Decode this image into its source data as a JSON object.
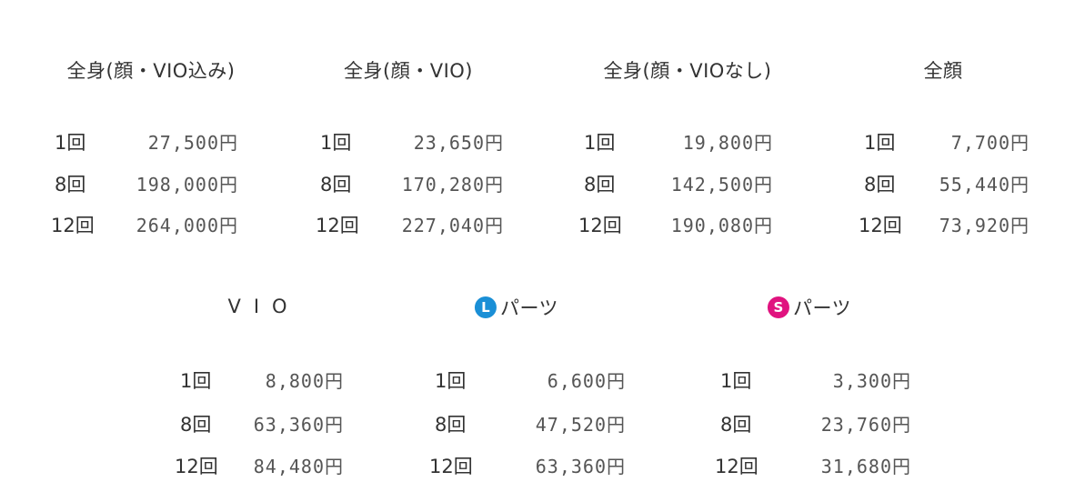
{
  "colors": {
    "text": "#333333",
    "price": "#555555",
    "badge_l": "#1a8fd6",
    "badge_s": "#e0137f"
  },
  "plans": [
    {
      "title": "全身(顔・VIO込み)",
      "rows": [
        {
          "count": "1回",
          "price": "27,500円"
        },
        {
          "count": "8回",
          "price": "198,000円"
        },
        {
          "count": "12回",
          "price": "264,000円"
        }
      ]
    },
    {
      "title": "全身(顔・VIO)",
      "rows": [
        {
          "count": "1回",
          "price": "23,650円"
        },
        {
          "count": "8回",
          "price": "170,280円"
        },
        {
          "count": "12回",
          "price": "227,040円"
        }
      ]
    },
    {
      "title": "全身(顔・VIOなし)",
      "rows": [
        {
          "count": "1回",
          "price": "19,800円"
        },
        {
          "count": "8回",
          "price": "142,500円"
        },
        {
          "count": "12回",
          "price": "190,080円"
        }
      ]
    },
    {
      "title": "全顔",
      "rows": [
        {
          "count": "1回",
          "price": "7,700円"
        },
        {
          "count": "8回",
          "price": "55,440円"
        },
        {
          "count": "12回",
          "price": "73,920円"
        }
      ]
    },
    {
      "title": "VIO",
      "rows": [
        {
          "count": "1回",
          "price": "8,800円"
        },
        {
          "count": "8回",
          "price": "63,360円"
        },
        {
          "count": "12回",
          "price": "84,480円"
        }
      ]
    },
    {
      "title": "パーツ",
      "badge": "L",
      "rows": [
        {
          "count": "1回",
          "price": "6,600円"
        },
        {
          "count": "8回",
          "price": "47,520円"
        },
        {
          "count": "12回",
          "price": "63,360円"
        }
      ]
    },
    {
      "title": "パーツ",
      "badge": "S",
      "rows": [
        {
          "count": "1回",
          "price": "3,300円"
        },
        {
          "count": "8回",
          "price": "23,760円"
        },
        {
          "count": "12回",
          "price": "31,680円"
        }
      ]
    }
  ]
}
